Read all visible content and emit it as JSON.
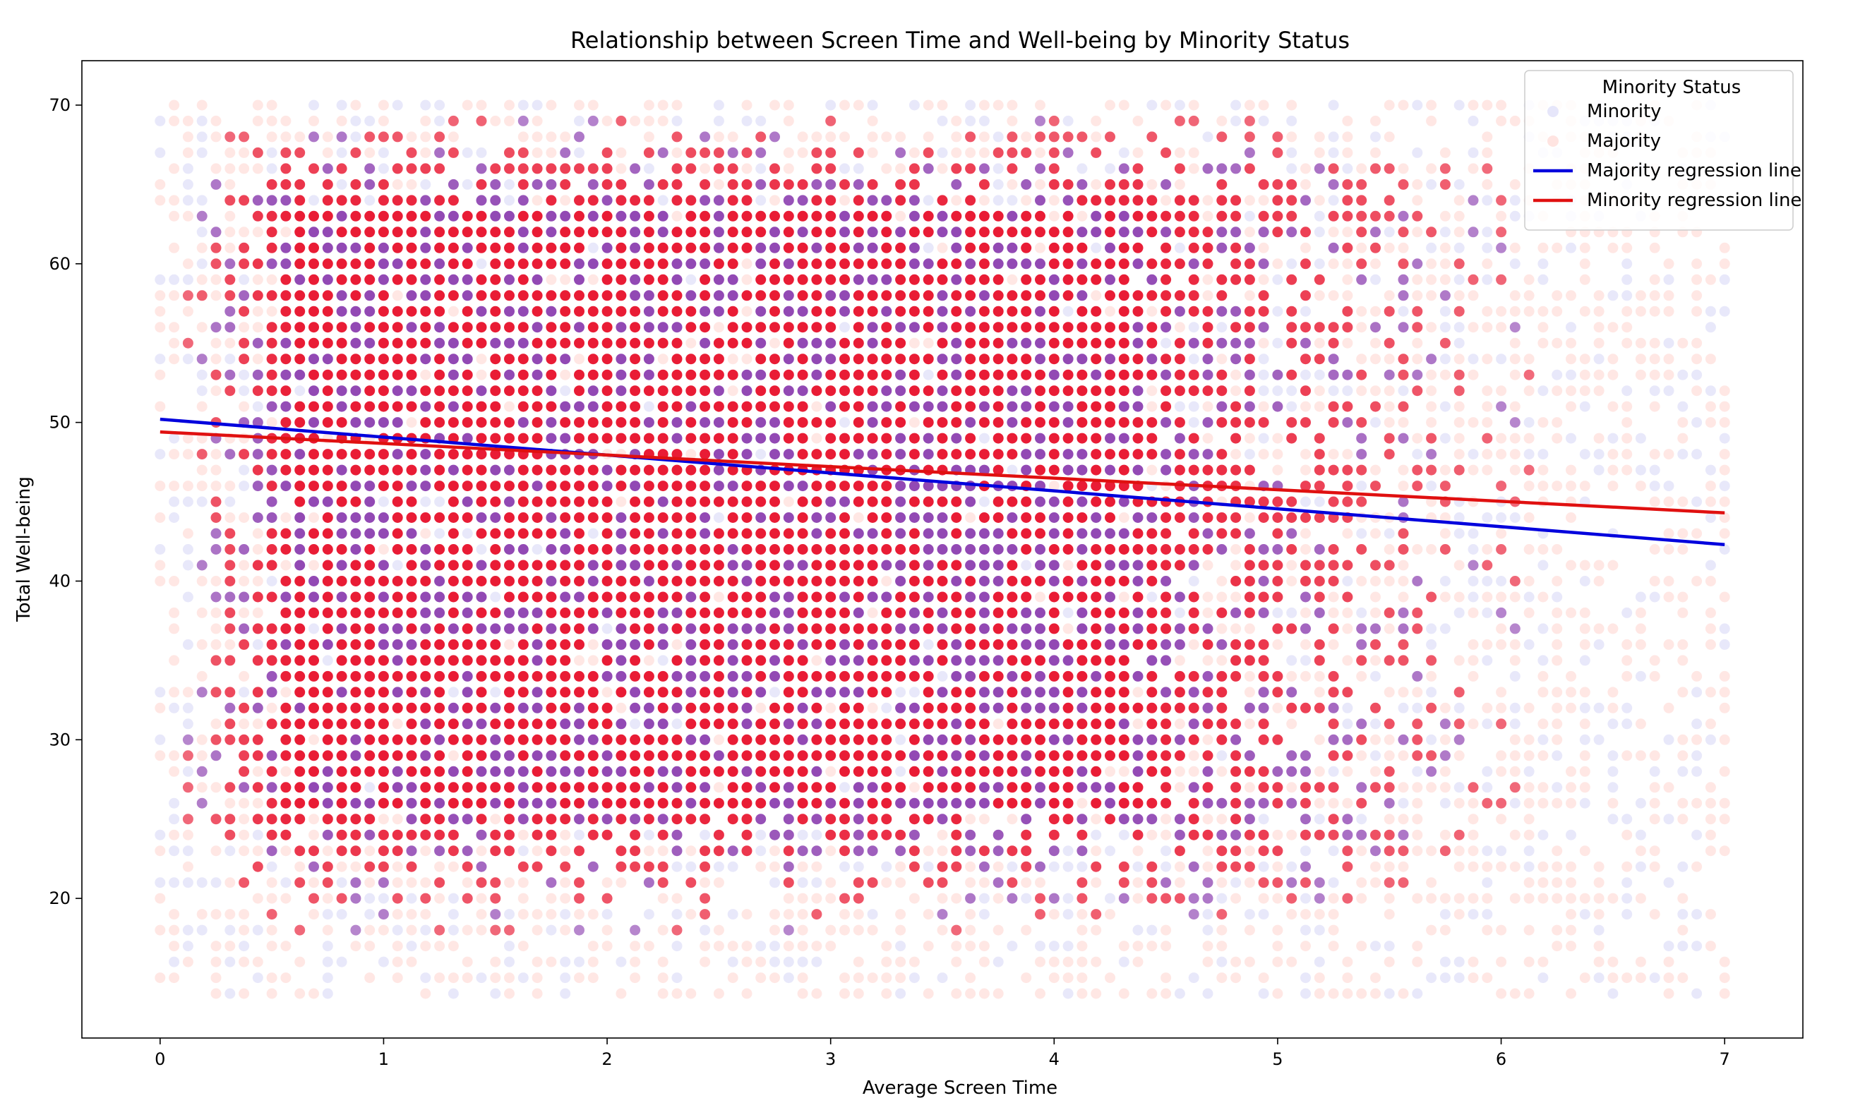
{
  "chart_data": {
    "type": "scatter",
    "title": "Relationship between Screen Time and Well-being by Minority Status",
    "xlabel": "Average Screen Time",
    "ylabel": "Total Well-being",
    "xlim": [
      -0.35,
      7.35
    ],
    "ylim": [
      11.2,
      72.8
    ],
    "xticks": [
      0,
      1,
      2,
      3,
      4,
      5,
      6,
      7
    ],
    "yticks": [
      20,
      30,
      40,
      50,
      60,
      70
    ],
    "grid": false,
    "legend": {
      "title": "Minority Status",
      "placement": "top-right",
      "entries": [
        {
          "label": "Minority",
          "kind": "marker",
          "color": "#e6e6fa"
        },
        {
          "label": "Majority",
          "kind": "marker",
          "color": "#ffe4e1"
        },
        {
          "label": "Majority regression line",
          "kind": "line",
          "color": "#0000dd"
        },
        {
          "label": "Minority regression line",
          "kind": "line",
          "color": "#e01010"
        }
      ]
    },
    "scatter_grid": {
      "x_step": 0.0625,
      "x_range": [
        0,
        7
      ],
      "y_step": 1,
      "y_range": [
        14,
        70
      ],
      "dense_region": {
        "x": [
          0.6,
          4.3
        ],
        "y": [
          26,
          63
        ]
      }
    },
    "series": [
      {
        "name": "Minority",
        "marker_color": "#e6e6fa",
        "dense_color": "#8c3fb0"
      },
      {
        "name": "Majority",
        "marker_color": "#ffe4e1",
        "dense_color": "#e8102a"
      }
    ],
    "regression_lines": [
      {
        "name": "Majority regression line",
        "color": "#0000dd",
        "points": [
          [
            0,
            50.2
          ],
          [
            7,
            42.3
          ]
        ]
      },
      {
        "name": "Minority regression line",
        "color": "#e01010",
        "points": [
          [
            0,
            49.4
          ],
          [
            7,
            44.3
          ]
        ]
      }
    ]
  }
}
